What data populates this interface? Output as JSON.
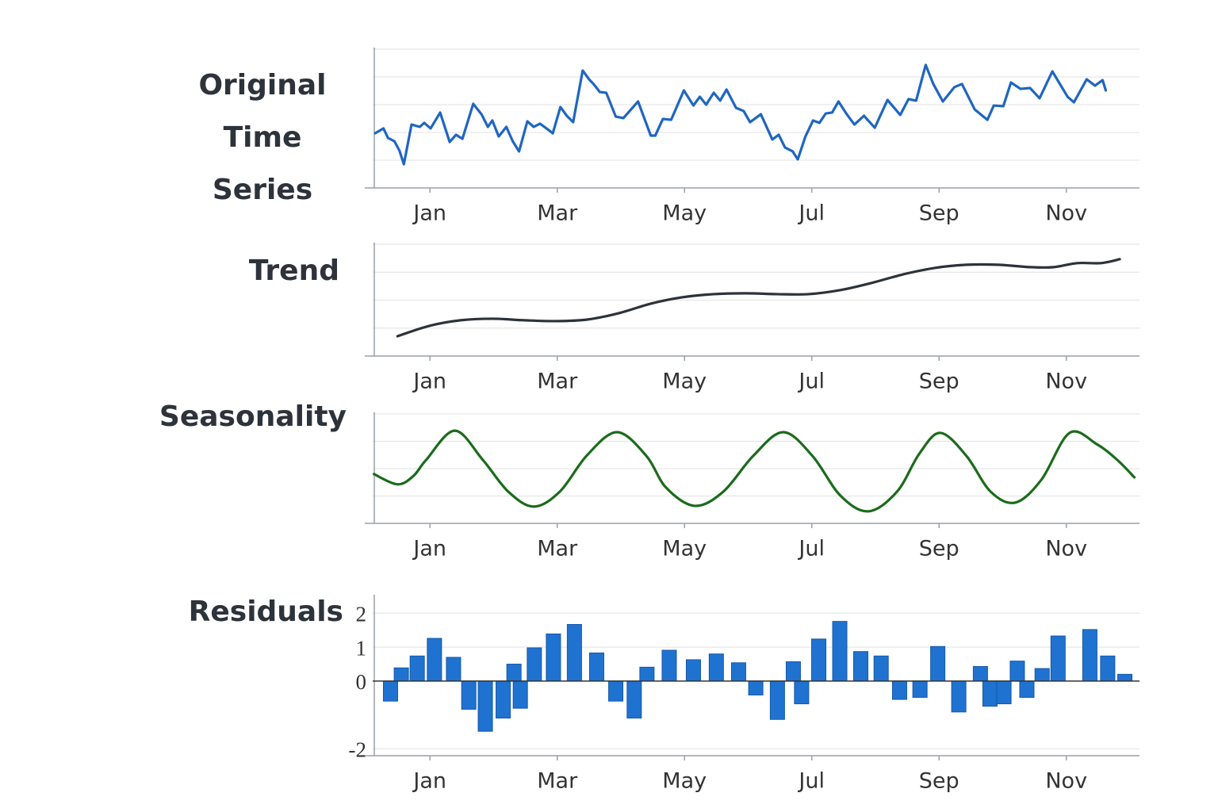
{
  "chart_data": [
    {
      "type": "line",
      "title": "Original Time Series",
      "color": "#1f66c1",
      "smooth": false,
      "xlim": [
        -0.9,
        11.15
      ],
      "xticks": [
        {
          "value": 0,
          "label": "Jan"
        },
        {
          "value": 2,
          "label": "Mar"
        },
        {
          "value": 4,
          "label": "May"
        },
        {
          "value": 6,
          "label": "Jul"
        },
        {
          "value": 8,
          "label": "Sep"
        },
        {
          "value": 10,
          "label": "Nov"
        }
      ],
      "ylim": [
        0,
        10
      ],
      "yticks": [
        2,
        4,
        6,
        8,
        10
      ],
      "grid": true,
      "x": [
        -0.86,
        -0.73,
        -0.66,
        -0.56,
        -0.48,
        -0.41,
        -0.29,
        -0.16,
        -0.09,
        0.01,
        0.16,
        0.31,
        0.41,
        0.51,
        0.68,
        0.81,
        0.91,
        0.98,
        1.08,
        1.2,
        1.3,
        1.4,
        1.53,
        1.63,
        1.73,
        1.83,
        1.93,
        2.05,
        2.15,
        2.25,
        2.4,
        2.5,
        2.57,
        2.67,
        2.77,
        2.92,
        3.04,
        3.27,
        3.47,
        3.54,
        3.66,
        3.79,
        3.99,
        4.14,
        4.24,
        4.34,
        4.46,
        4.56,
        4.66,
        4.81,
        4.93,
        5.03,
        5.2,
        5.38,
        5.48,
        5.58,
        5.7,
        5.78,
        5.9,
        6.02,
        6.12,
        6.22,
        6.32,
        6.42,
        6.55,
        6.67,
        6.82,
        6.99,
        7.19,
        7.39,
        7.52,
        7.64,
        7.79,
        7.91,
        8.06,
        8.24,
        8.36,
        8.56,
        8.76,
        8.86,
        9.01,
        9.13,
        9.28,
        9.43,
        9.58,
        9.78,
        10.02,
        10.12,
        10.32,
        10.45,
        10.57,
        10.62
      ],
      "values": [
        3.94,
        4.29,
        3.6,
        3.37,
        2.69,
        1.71,
        4.57,
        4.4,
        4.69,
        4.29,
        5.43,
        3.31,
        3.83,
        3.54,
        6.06,
        5.31,
        4.4,
        4.86,
        3.71,
        4.4,
        3.37,
        2.63,
        4.8,
        4.4,
        4.63,
        4.29,
        3.94,
        5.83,
        5.2,
        4.74,
        8.46,
        7.83,
        7.49,
        6.91,
        6.86,
        5.14,
        5.03,
        6.23,
        3.77,
        3.77,
        4.97,
        4.91,
        7.03,
        5.94,
        6.57,
        6.0,
        6.86,
        6.29,
        7.09,
        5.77,
        5.54,
        4.74,
        5.31,
        3.49,
        3.83,
        2.91,
        2.63,
        2.06,
        3.71,
        4.86,
        4.69,
        5.37,
        5.43,
        6.23,
        5.31,
        4.57,
        5.2,
        4.34,
        6.34,
        5.26,
        6.4,
        6.29,
        8.86,
        7.49,
        6.23,
        7.26,
        7.49,
        5.66,
        4.91,
        5.94,
        5.89,
        7.6,
        7.14,
        7.2,
        6.46,
        8.4,
        6.57,
        6.17,
        7.83,
        7.37,
        7.77,
        7.03
      ]
    },
    {
      "type": "line",
      "title": "Trend",
      "color": "#2d333b",
      "smooth": true,
      "xlim": [
        -0.9,
        11.15
      ],
      "xticks": [
        {
          "value": 0,
          "label": "Jan"
        },
        {
          "value": 2,
          "label": "Mar"
        },
        {
          "value": 4,
          "label": "May"
        },
        {
          "value": 6,
          "label": "Jul"
        },
        {
          "value": 8,
          "label": "Sep"
        },
        {
          "value": 10,
          "label": "Nov"
        }
      ],
      "ylim": [
        0,
        8
      ],
      "yticks": [
        2,
        4,
        6,
        8
      ],
      "grid": true,
      "x": [
        -0.51,
        -0.01,
        0.48,
        0.98,
        1.48,
        1.98,
        2.47,
        2.97,
        3.47,
        3.96,
        4.46,
        4.96,
        5.45,
        5.95,
        6.45,
        6.94,
        7.44,
        7.94,
        8.43,
        8.93,
        9.43,
        9.8,
        10.17,
        10.55,
        10.84
      ],
      "values": [
        1.42,
        2.16,
        2.56,
        2.67,
        2.56,
        2.5,
        2.61,
        3.07,
        3.75,
        4.2,
        4.43,
        4.49,
        4.43,
        4.43,
        4.72,
        5.23,
        5.85,
        6.31,
        6.53,
        6.53,
        6.36,
        6.36,
        6.65,
        6.65,
        6.93
      ]
    },
    {
      "type": "line",
      "title": "Seasonality",
      "color": "#1b6b1b",
      "smooth": true,
      "xlim": [
        -0.9,
        11.15
      ],
      "xticks": [
        {
          "value": 0,
          "label": "Jan"
        },
        {
          "value": 2,
          "label": "Mar"
        },
        {
          "value": 4,
          "label": "May"
        },
        {
          "value": 6,
          "label": "Jul"
        },
        {
          "value": 8,
          "label": "Sep"
        },
        {
          "value": 10,
          "label": "Nov"
        }
      ],
      "ylim": [
        -1.5,
        1.5
      ],
      "yticks": [
        -0.75,
        0,
        0.75,
        1.5
      ],
      "grid": true,
      "x": [
        -0.88,
        -0.51,
        -0.26,
        -0.06,
        0.39,
        0.83,
        1.23,
        1.63,
        2.04,
        2.47,
        2.94,
        3.4,
        3.71,
        4.16,
        4.61,
        5.08,
        5.55,
        6.01,
        6.45,
        6.89,
        7.34,
        7.69,
        8.02,
        8.43,
        8.81,
        9.2,
        9.61,
        10.05,
        10.48,
        10.8,
        11.07
      ],
      "values": [
        -0.15,
        -0.43,
        -0.2,
        0.24,
        1.04,
        0.24,
        -0.63,
        -1.04,
        -0.63,
        0.37,
        1.0,
        0.35,
        -0.52,
        -1.02,
        -0.63,
        0.35,
        1.0,
        0.35,
        -0.74,
        -1.17,
        -0.63,
        0.41,
        0.98,
        0.35,
        -0.63,
        -0.93,
        -0.3,
        0.98,
        0.67,
        0.24,
        -0.24
      ]
    },
    {
      "type": "bar",
      "title": "Residuals",
      "color": "#1f72d0",
      "ytick_labels": true,
      "xlim": [
        -0.9,
        11.15
      ],
      "xticks": [
        {
          "value": 0,
          "label": "Jan"
        },
        {
          "value": 2,
          "label": "Mar"
        },
        {
          "value": 4,
          "label": "May"
        },
        {
          "value": 6,
          "label": "Jul"
        },
        {
          "value": 8,
          "label": "Sep"
        },
        {
          "value": 10,
          "label": "Nov"
        }
      ],
      "ylim": [
        -2.2,
        2.5
      ],
      "yticks": [
        -2,
        0,
        1,
        2
      ],
      "grid": true,
      "x": [
        -0.62,
        -0.45,
        -0.2,
        0.07,
        0.37,
        0.61,
        0.87,
        1.15,
        1.32,
        1.42,
        1.64,
        1.94,
        2.27,
        2.62,
        2.92,
        3.21,
        3.41,
        3.76,
        4.14,
        4.5,
        4.85,
        5.12,
        5.46,
        5.71,
        5.84,
        6.11,
        6.44,
        6.77,
        7.09,
        7.38,
        7.7,
        7.98,
        8.31,
        8.65,
        8.8,
        9.02,
        9.23,
        9.38,
        9.62,
        9.87,
        10.37,
        10.65,
        10.92
      ],
      "values": [
        -0.59,
        0.39,
        0.74,
        1.26,
        0.7,
        -0.83,
        -1.48,
        -1.09,
        0.5,
        -0.8,
        0.98,
        1.39,
        1.67,
        0.83,
        -0.59,
        -1.09,
        0.41,
        0.91,
        0.63,
        0.8,
        0.54,
        -0.41,
        -1.13,
        0.57,
        -0.67,
        1.24,
        1.76,
        0.87,
        0.74,
        -0.54,
        -0.48,
        1.02,
        -0.91,
        0.43,
        -0.74,
        -0.67,
        0.59,
        -0.48,
        0.37,
        1.33,
        1.52,
        0.74,
        0.2
      ]
    }
  ]
}
